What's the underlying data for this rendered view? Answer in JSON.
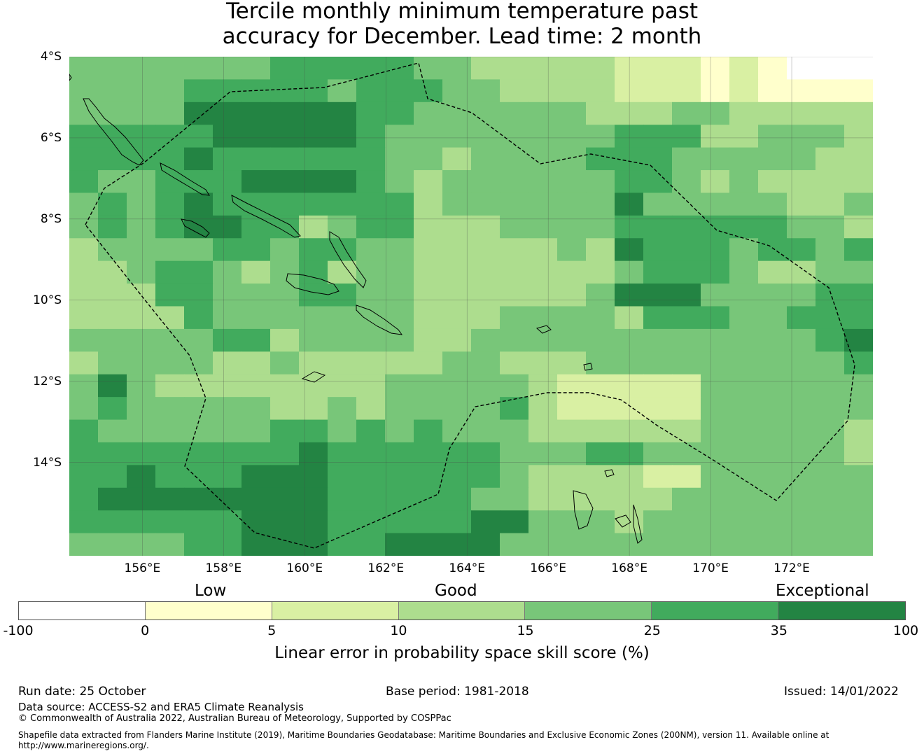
{
  "title": {
    "line1": "Tercile monthly minimum temperature past",
    "line2": "accuracy for December. Lead time: 2 month"
  },
  "map": {
    "lat_labels": [
      "4°S",
      "6°S",
      "8°S",
      "10°S",
      "12°S",
      "14°S"
    ],
    "lon_labels": [
      "156°E",
      "158°E",
      "160°E",
      "162°E",
      "164°E",
      "166°E",
      "168°E",
      "170°E",
      "172°E"
    ],
    "lon_range": [
      154.2,
      174.0
    ],
    "lat_range": [
      -4.0,
      -16.3
    ],
    "grid": true,
    "cells_deg": 0.833,
    "skill_grid": [
      "4444444555554433333222121000",
      "4444555554555443333222121111",
      "4444666666554444443334433333",
      "5555566666544444444555334443",
      "5555655555544344445554444433",
      "5445556666543444444554343333",
      "4545655555553444444644444334",
      "4545665534553334444555555443",
      "3444455455443333343655545545",
      "3345543453443333333455543344",
      "3335544455443333334666444455",
      "3333544444443334444355544555",
      "4444455344443344444444444456",
      "3444433433333443334444444445",
      "4643333333344444322222444444",
      "4544444334344445322222444444",
      "5444444554545444333333444443",
      "5555555565555554445544444443",
      "5565556665555554333322444444",
      "5666666665555544333334444444",
      "5555556665555566444344444444",
      "4444556665566664444444444444"
    ],
    "colors": {
      "water": "#ffffff",
      "land": "#000000",
      "eez": "#000000"
    }
  },
  "legend": {
    "categories": [
      "Low",
      "Good",
      "Exceptional"
    ],
    "bins": [
      -100,
      0,
      5,
      10,
      15,
      25,
      35,
      100
    ],
    "tick_labels": [
      "-100",
      "0",
      "5",
      "10",
      "15",
      "25",
      "35",
      "100"
    ],
    "colors": [
      "#ffffff",
      "#ffffcc",
      "#d9f0a3",
      "#addd8e",
      "#78c679",
      "#41ab5d",
      "#238443"
    ],
    "title": "Linear error in probability space skill score (%)"
  },
  "footer": {
    "run_date": "Run date: 25 October",
    "base_period": "Base period: 1981-2018",
    "issued": "Issued: 14/01/2022",
    "data_source": "Data source: ACCESS-S2 and ERA5 Climate Reanalysis",
    "copyright": "© Commonwealth of Australia 2022, Australian Bureau of Meteorology, Supported by COSPPac",
    "shapefile_line1": "Shapefile data extracted from Flanders Marine Institute (2019), Maritime Boundaries Geodatabase: Maritime Boundaries and Exclusive Economic Zones (200NM), version 11. Available online at",
    "shapefile_line2": "http://www.marineregions.org/."
  }
}
